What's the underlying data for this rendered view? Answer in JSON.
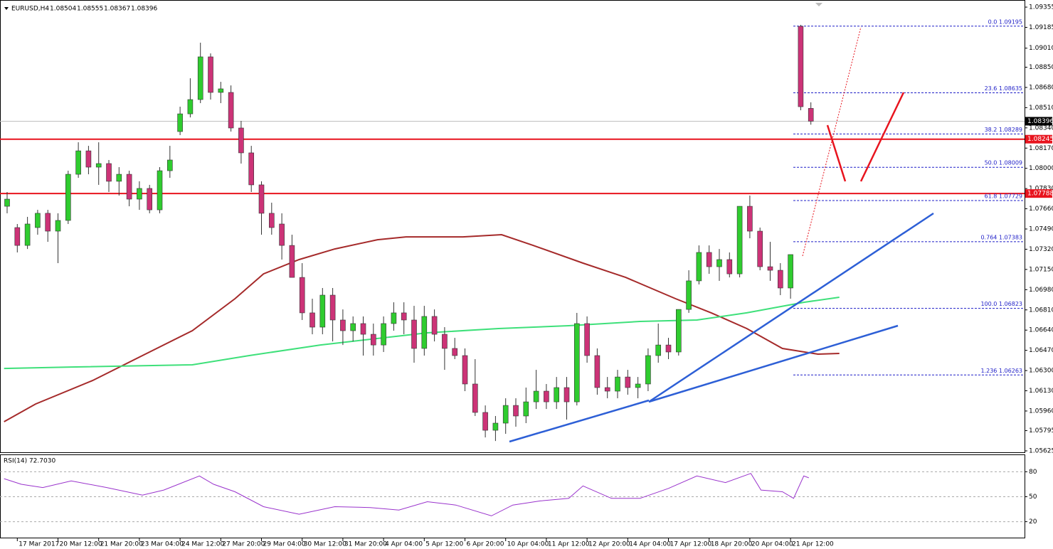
{
  "chart_data": [
    {
      "type": "candlestick",
      "title": "EURUSD,H4",
      "header_ohlc": [
        1.08504,
        1.08555,
        1.08367,
        1.08396
      ],
      "up_color": "#2fcc2f",
      "down_color": "#cc3377",
      "xlim": [
        -0.7,
        100
      ],
      "ylim": [
        1.05613,
        1.09403
      ],
      "yticks": [
        {
          "value": 1.09355,
          "label": "1.09355"
        },
        {
          "value": 1.09185,
          "label": "1.09185"
        },
        {
          "value": 1.0901,
          "label": "1.09010"
        },
        {
          "value": 1.0885,
          "label": "1.08850"
        },
        {
          "value": 1.0868,
          "label": "1.08680"
        },
        {
          "value": 1.0851,
          "label": "1.08510"
        },
        {
          "value": 1.0834,
          "label": "1.08340"
        },
        {
          "value": 1.0817,
          "label": "1.08170"
        },
        {
          "value": 1.08,
          "label": "1.08000"
        },
        {
          "value": 1.0783,
          "label": "1.07830"
        },
        {
          "value": 1.0766,
          "label": "1.07660"
        },
        {
          "value": 1.0749,
          "label": "1.07490"
        },
        {
          "value": 1.0732,
          "label": "1.07320"
        },
        {
          "value": 1.0715,
          "label": "1.07150"
        },
        {
          "value": 1.0698,
          "label": "1.06980"
        },
        {
          "value": 1.0681,
          "label": "1.06810"
        },
        {
          "value": 1.0664,
          "label": "1.06640"
        },
        {
          "value": 1.0647,
          "label": "1.06470"
        },
        {
          "value": 1.063,
          "label": "1.06300"
        },
        {
          "value": 1.0613,
          "label": "1.06130"
        },
        {
          "value": 1.0596,
          "label": "1.05960"
        },
        {
          "value": 1.05795,
          "label": "1.05795"
        },
        {
          "value": 1.05625,
          "label": "1.05625"
        }
      ],
      "xticks": [
        {
          "value": 1,
          "label": "17 Mar 2017"
        },
        {
          "value": 5,
          "label": "20 Mar 12:00"
        },
        {
          "value": 9,
          "label": "21 Mar 20:00"
        },
        {
          "value": 13,
          "label": "23 Mar 04:00"
        },
        {
          "value": 17,
          "label": "24 Mar 12:00"
        },
        {
          "value": 21,
          "label": "27 Mar 20:00"
        },
        {
          "value": 25,
          "label": "29 Mar 04:00"
        },
        {
          "value": 29,
          "label": "30 Mar 12:00"
        },
        {
          "value": 33,
          "label": "31 Mar 20:00"
        },
        {
          "value": 37,
          "label": "4 Apr 04:00"
        },
        {
          "value": 41,
          "label": "5 Apr 12:00"
        },
        {
          "value": 45,
          "label": "6 Apr 20:00"
        },
        {
          "value": 49,
          "label": "10 Apr 04:00"
        },
        {
          "value": 53,
          "label": "11 Apr 12:00"
        },
        {
          "value": 57,
          "label": "12 Apr 20:00"
        },
        {
          "value": 61,
          "label": "14 Apr 04:00"
        },
        {
          "value": 65,
          "label": "17 Apr 12:00"
        },
        {
          "value": 69,
          "label": "18 Apr 20:00"
        },
        {
          "value": 73,
          "label": "20 Apr 04:00"
        },
        {
          "value": 77,
          "label": "21 Apr 12:00"
        }
      ],
      "ohlc": [
        [
          1.07681,
          1.07801,
          1.07622,
          1.07741
        ],
        [
          1.07502,
          1.07532,
          1.07293,
          1.07352
        ],
        [
          1.07352,
          1.07592,
          1.07322,
          1.07532
        ],
        [
          1.07502,
          1.07651,
          1.07442,
          1.07622
        ],
        [
          1.07622,
          1.07651,
          1.07382,
          1.07472
        ],
        [
          1.07472,
          1.07622,
          1.07203,
          1.07562
        ],
        [
          1.07562,
          1.0798,
          1.07532,
          1.0795
        ],
        [
          1.0795,
          1.08219,
          1.0792,
          1.08147
        ],
        [
          1.08147,
          1.08189,
          1.0795,
          1.0801
        ],
        [
          1.0801,
          1.08219,
          1.07861,
          1.0804
        ],
        [
          1.0804,
          1.0807,
          1.07801,
          1.07891
        ],
        [
          1.07891,
          1.0801,
          1.07771,
          1.0795
        ],
        [
          1.0795,
          1.0798,
          1.07681,
          1.07741
        ],
        [
          1.07741,
          1.07891,
          1.07651,
          1.07831
        ],
        [
          1.07831,
          1.07861,
          1.07622,
          1.07651
        ],
        [
          1.07651,
          1.0801,
          1.07622,
          1.0798
        ],
        [
          1.0798,
          1.08189,
          1.0792,
          1.0807
        ],
        [
          1.08309,
          1.08518,
          1.08279,
          1.08458
        ],
        [
          1.08458,
          1.08757,
          1.08428,
          1.08578
        ],
        [
          1.08578,
          1.09056,
          1.08548,
          1.08937
        ],
        [
          1.08937,
          1.08966,
          1.08578,
          1.08638
        ],
        [
          1.08638,
          1.08727,
          1.08548,
          1.08668
        ],
        [
          1.08638,
          1.08697,
          1.08309,
          1.08339
        ],
        [
          1.08339,
          1.08399,
          1.0804,
          1.0813
        ],
        [
          1.0813,
          1.08189,
          1.07801,
          1.07861
        ],
        [
          1.07861,
          1.07891,
          1.07442,
          1.07622
        ],
        [
          1.07622,
          1.07711,
          1.07442,
          1.07502
        ],
        [
          1.07532,
          1.07622,
          1.07233,
          1.07352
        ],
        [
          1.07352,
          1.07442,
          1.07083,
          1.07083
        ],
        [
          1.07083,
          1.07203,
          1.06725,
          1.06785
        ],
        [
          1.06785,
          1.06904,
          1.06605,
          1.06665
        ],
        [
          1.06665,
          1.06994,
          1.06605,
          1.06934
        ],
        [
          1.06934,
          1.06994,
          1.06545,
          1.06725
        ],
        [
          1.06725,
          1.06814,
          1.06515,
          1.06635
        ],
        [
          1.06635,
          1.06755,
          1.06545,
          1.06695
        ],
        [
          1.06695,
          1.06755,
          1.06426,
          1.06605
        ],
        [
          1.06605,
          1.06695,
          1.06426,
          1.06515
        ],
        [
          1.06515,
          1.06755,
          1.06456,
          1.06695
        ],
        [
          1.06695,
          1.06874,
          1.06635,
          1.06785
        ],
        [
          1.06785,
          1.06874,
          1.06605,
          1.06725
        ],
        [
          1.06725,
          1.06844,
          1.06366,
          1.06486
        ],
        [
          1.06486,
          1.06844,
          1.06426,
          1.06755
        ],
        [
          1.06755,
          1.06814,
          1.06545,
          1.06605
        ],
        [
          1.06605,
          1.06665,
          1.06306,
          1.06486
        ],
        [
          1.06486,
          1.06575,
          1.06396,
          1.06426
        ],
        [
          1.06426,
          1.06486,
          1.06127,
          1.06187
        ],
        [
          1.06187,
          1.06396,
          1.05918,
          1.05948
        ],
        [
          1.05948,
          1.06007,
          1.05738,
          1.05798
        ],
        [
          1.05798,
          1.05918,
          1.05708,
          1.05858
        ],
        [
          1.05858,
          1.06067,
          1.05768,
          1.06007
        ],
        [
          1.06007,
          1.06067,
          1.05828,
          1.05918
        ],
        [
          1.05918,
          1.06157,
          1.05858,
          1.06037
        ],
        [
          1.06037,
          1.06306,
          1.05977,
          1.06127
        ],
        [
          1.06127,
          1.06187,
          1.05977,
          1.06037
        ],
        [
          1.06037,
          1.06246,
          1.05977,
          1.06157
        ],
        [
          1.06157,
          1.06246,
          1.05888,
          1.06037
        ],
        [
          1.06037,
          1.06785,
          1.06007,
          1.06695
        ],
        [
          1.06695,
          1.06755,
          1.06366,
          1.06426
        ],
        [
          1.06426,
          1.06486,
          1.06097,
          1.06157
        ],
        [
          1.06157,
          1.06246,
          1.06067,
          1.06127
        ],
        [
          1.06127,
          1.06306,
          1.06067,
          1.06246
        ],
        [
          1.06246,
          1.06306,
          1.06097,
          1.06157
        ],
        [
          1.06157,
          1.06246,
          1.06067,
          1.06187
        ],
        [
          1.06187,
          1.06486,
          1.06127,
          1.06426
        ],
        [
          1.06426,
          1.06695,
          1.06366,
          1.06515
        ],
        [
          1.06515,
          1.06575,
          1.06396,
          1.06456
        ],
        [
          1.06456,
          1.06814,
          1.06426,
          1.06814
        ],
        [
          1.06814,
          1.07143,
          1.06785,
          1.07054
        ],
        [
          1.07054,
          1.07352,
          1.07024,
          1.07293
        ],
        [
          1.07293,
          1.07352,
          1.07113,
          1.07173
        ],
        [
          1.07173,
          1.07322,
          1.07054,
          1.07233
        ],
        [
          1.07233,
          1.07293,
          1.07083,
          1.07113
        ],
        [
          1.07113,
          1.07681,
          1.07083,
          1.07681
        ],
        [
          1.07681,
          1.07771,
          1.07412,
          1.07472
        ],
        [
          1.07472,
          1.07502,
          1.07143,
          1.07173
        ],
        [
          1.07173,
          1.07382,
          1.07054,
          1.07143
        ],
        [
          1.07143,
          1.07203,
          1.06934,
          1.06994
        ],
        [
          1.06994,
          1.07275,
          1.06904,
          1.07275
        ],
        [
          1.09194,
          1.09206,
          1.08488,
          1.08518
        ],
        [
          1.08504,
          1.08555,
          1.08367,
          1.08396
        ]
      ],
      "moving_averages": [
        {
          "color": "#a52a2a",
          "x": [
            -0.3,
            2.8,
            8.4,
            13.3,
            18.2,
            22.4,
            25.2,
            28.7,
            32.2,
            36.4,
            39.2,
            44.8,
            48.6,
            51.7,
            56.6,
            60.8,
            65.7,
            69.2,
            72.7,
            76.2,
            79.7,
            81.8
          ],
          "values": [
            1.0587,
            1.06019,
            1.06216,
            1.06426,
            1.06635,
            1.06904,
            1.07113,
            1.07233,
            1.07322,
            1.074,
            1.07424,
            1.07424,
            1.07442,
            1.07352,
            1.07203,
            1.07083,
            1.06904,
            1.06785,
            1.06653,
            1.06486,
            1.06438,
            1.06444
          ]
        },
        {
          "color": "#3ee07a",
          "x": [
            -0.3,
            6.3,
            18.2,
            23.8,
            30.8,
            41.3,
            48.3,
            55.2,
            62.2,
            67.8,
            72.7,
            78.3,
            81.8
          ],
          "values": [
            1.06318,
            1.0633,
            1.06348,
            1.06426,
            1.06515,
            1.06617,
            1.06653,
            1.06677,
            1.06713,
            1.06725,
            1.06785,
            1.06874,
            1.06916
          ]
        }
      ],
      "levels": [
        {
          "value": 1.08245,
          "label": "1.08245",
          "color": "#e8141e"
        },
        {
          "value": 1.07788,
          "label": "1.07788",
          "color": "#e8141e"
        }
      ],
      "current_price": {
        "value": 1.08396,
        "label": "1.08396",
        "color": "#000000"
      },
      "fib_color": "#1f1fc8",
      "fib_levels": [
        {
          "value": 1.09195,
          "label": "0.0 1.09195"
        },
        {
          "value": 1.08635,
          "label": "23.6 1.08635"
        },
        {
          "value": 1.08289,
          "label": "38.2 1.08289"
        },
        {
          "value": 1.08009,
          "label": "50.0 1.08009"
        },
        {
          "value": 1.07729,
          "label": "61.8 1.07729"
        },
        {
          "value": 1.07383,
          "label": "0.764 1.07383"
        },
        {
          "value": 1.06823,
          "label": "100.0 1.06823"
        },
        {
          "value": 1.06263,
          "label": "1.236 1.06263"
        }
      ]
    },
    {
      "type": "line",
      "title": "RSI(14) 72.7030",
      "color": "#9932cc",
      "xlim": [
        -0.7,
        100
      ],
      "ylim": [
        0,
        100
      ],
      "yticks": [
        20,
        50,
        80
      ],
      "x": [
        -0.3,
        1.4,
        3.5,
        6.3,
        9.8,
        13.3,
        15.4,
        18.9,
        20.3,
        22.4,
        25.2,
        28.7,
        32.2,
        35.7,
        38.5,
        41.3,
        44.1,
        47.6,
        49.7,
        52.4,
        55.2,
        56.6,
        59.4,
        62.2,
        65,
        67.8,
        70.6,
        73.1,
        74.1,
        76.2,
        77.3,
        78.3,
        78.8
      ],
      "values": [
        71.7,
        65,
        61,
        69,
        61,
        52,
        58,
        75,
        65,
        56,
        38,
        29,
        38,
        37,
        34,
        44,
        40,
        27,
        40,
        45,
        48,
        63,
        48,
        48,
        60,
        75,
        67,
        78,
        58,
        56,
        48,
        75,
        72.703
      ]
    }
  ]
}
